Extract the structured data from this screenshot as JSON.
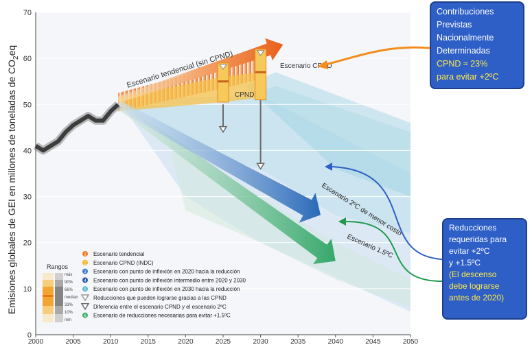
{
  "chart_data": {
    "type": "line",
    "ylabel_main": "Emisiones globales de GEI en millones de toneladas de CO",
    "ylabel_sub": "2",
    "ylabel_end": "eq",
    "xlim": [
      2000,
      2050
    ],
    "ylim": [
      0,
      70
    ],
    "xticks": [
      2000,
      2005,
      2010,
      2015,
      2020,
      2025,
      2030,
      2035,
      2040,
      2045,
      2050
    ],
    "yticks": [
      0,
      10,
      20,
      30,
      40,
      50,
      60,
      70
    ],
    "historical": {
      "x": [
        2000,
        2001,
        2002,
        2003,
        2004,
        2005,
        2006,
        2007,
        2008,
        2009,
        2010,
        2011
      ],
      "y": [
        41,
        40,
        41,
        42,
        44,
        45.5,
        46.5,
        47.5,
        46.5,
        46.5,
        48.5,
        50
      ]
    },
    "band_tendencial": {
      "x": [
        2011,
        2025,
        2030
      ],
      "low": [
        48.5,
        53.5,
        55.5
      ],
      "high": [
        52.5,
        58.5,
        60.5
      ]
    },
    "arrow_tendencial": {
      "x": [
        2011,
        2033
      ],
      "y": [
        51,
        63
      ]
    },
    "band_cpnd": {
      "x": [
        2011,
        2025,
        2030
      ],
      "low": [
        48.5,
        50.5,
        51.5
      ],
      "high": [
        51.5,
        56,
        57
      ]
    },
    "arrow_2c": {
      "x": [
        2011,
        2038
      ],
      "y": [
        50,
        26
      ]
    },
    "arrow_15c": {
      "x": [
        2011,
        2040
      ],
      "y": [
        50,
        16
      ]
    },
    "cpnd_bars": [
      {
        "x": 2025,
        "low": 50.5,
        "high": 59,
        "median": 55
      },
      {
        "x": 2030,
        "low": 51,
        "high": 62,
        "median": 57
      }
    ],
    "gap_arrows": [
      {
        "x": 2025,
        "from": 50,
        "to": 44
      },
      {
        "x": 2030,
        "from": 52,
        "to": 36
      }
    ],
    "annotations": {
      "tendencial": "Escenario tendencial (sin CPND)",
      "cpnd_right": "Escenario CPND",
      "cpnd_center": "CPND",
      "esc_2c": "Escenario 2ºC de menor costo",
      "esc_15c": "Escenario 1.5ºC"
    },
    "legend": {
      "title": "Rangos",
      "range_labels": [
        "máx",
        "90%",
        "66%",
        "median",
        "33%",
        "10%",
        "mín"
      ],
      "items": [
        {
          "num": "1",
          "color": "#f07a22",
          "label": "Escenario tendencial"
        },
        {
          "num": "2",
          "color": "#f5b720",
          "label": "Escenario CPND (INDC)"
        },
        {
          "num": "3",
          "color": "#3a78c8",
          "label": "Escenario con punto de inflexión en 2020 hacia la reducción"
        },
        {
          "num": "4",
          "color": "#2a5aa8",
          "label": "Escenario con punto de inflexión intermedio entre 2020 y 2030"
        },
        {
          "num": "5",
          "color": "#57b6d2",
          "label": "Escenario con punto de inflexión en 2030 hacia la reducción"
        },
        {
          "num": "",
          "color": "#9a9a9a",
          "label": "Reducciones que pueden lograrse gracias a las CPND"
        },
        {
          "num": "",
          "color": "#6e6e6e",
          "label": "Diferencia entre el escenario CPND y el escenario  2ºC"
        },
        {
          "num": "6",
          "color": "#3cae6b",
          "label": "Escenario de reducciones necesarias para  evitar +1.5ºC"
        }
      ]
    }
  },
  "callout_top": {
    "lines": [
      "Contribuciones",
      "Previstas",
      "Nacionalmente",
      "Determinadas"
    ],
    "highlight": [
      "CPND ≈ 23%",
      "para evitar +2ºC"
    ]
  },
  "callout_bottom": {
    "lines": [
      "Reducciones",
      "requeridas para",
      "evitar +2ºC",
      "y +1.5ºC"
    ],
    "highlight": [
      "(El descenso",
      "debe lograrse",
      "antes de 2020)"
    ]
  },
  "colors": {
    "orange": "#f07a22",
    "yellow": "#f5b720",
    "blue": "#2a5aa8",
    "lightblue": "#9fd3e3",
    "green": "#3cae6b",
    "gray": "#6b6b6b",
    "callout": "#2e5fc6"
  }
}
